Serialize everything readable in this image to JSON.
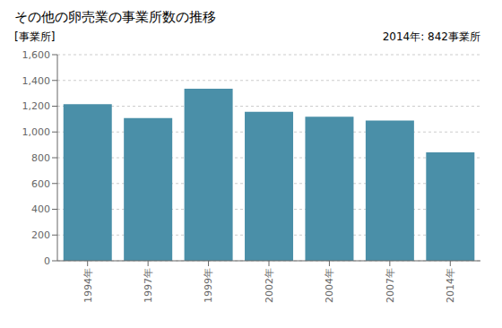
{
  "chart_data": {
    "type": "bar",
    "title": "その他の卵売業の事業所数の推移",
    "y_label": "[事業所]",
    "annotation": "2014年: 842事業所",
    "categories": [
      "1994年",
      "1997年",
      "1999年",
      "2002年",
      "2004年",
      "2007年",
      "2014年"
    ],
    "values": [
      1215,
      1107,
      1336,
      1157,
      1118,
      1089,
      842
    ],
    "color": "#4a8fa8",
    "ylim": [
      0,
      1600
    ],
    "yticks": [
      0,
      200,
      400,
      600,
      800,
      {
        "value": 1000,
        "label": "1,000"
      },
      {
        "value": 1200,
        "label": "1,200"
      },
      {
        "value": 1400,
        "label": "1,400"
      },
      {
        "value": 1600,
        "label": "1,600"
      }
    ],
    "grid": true
  }
}
